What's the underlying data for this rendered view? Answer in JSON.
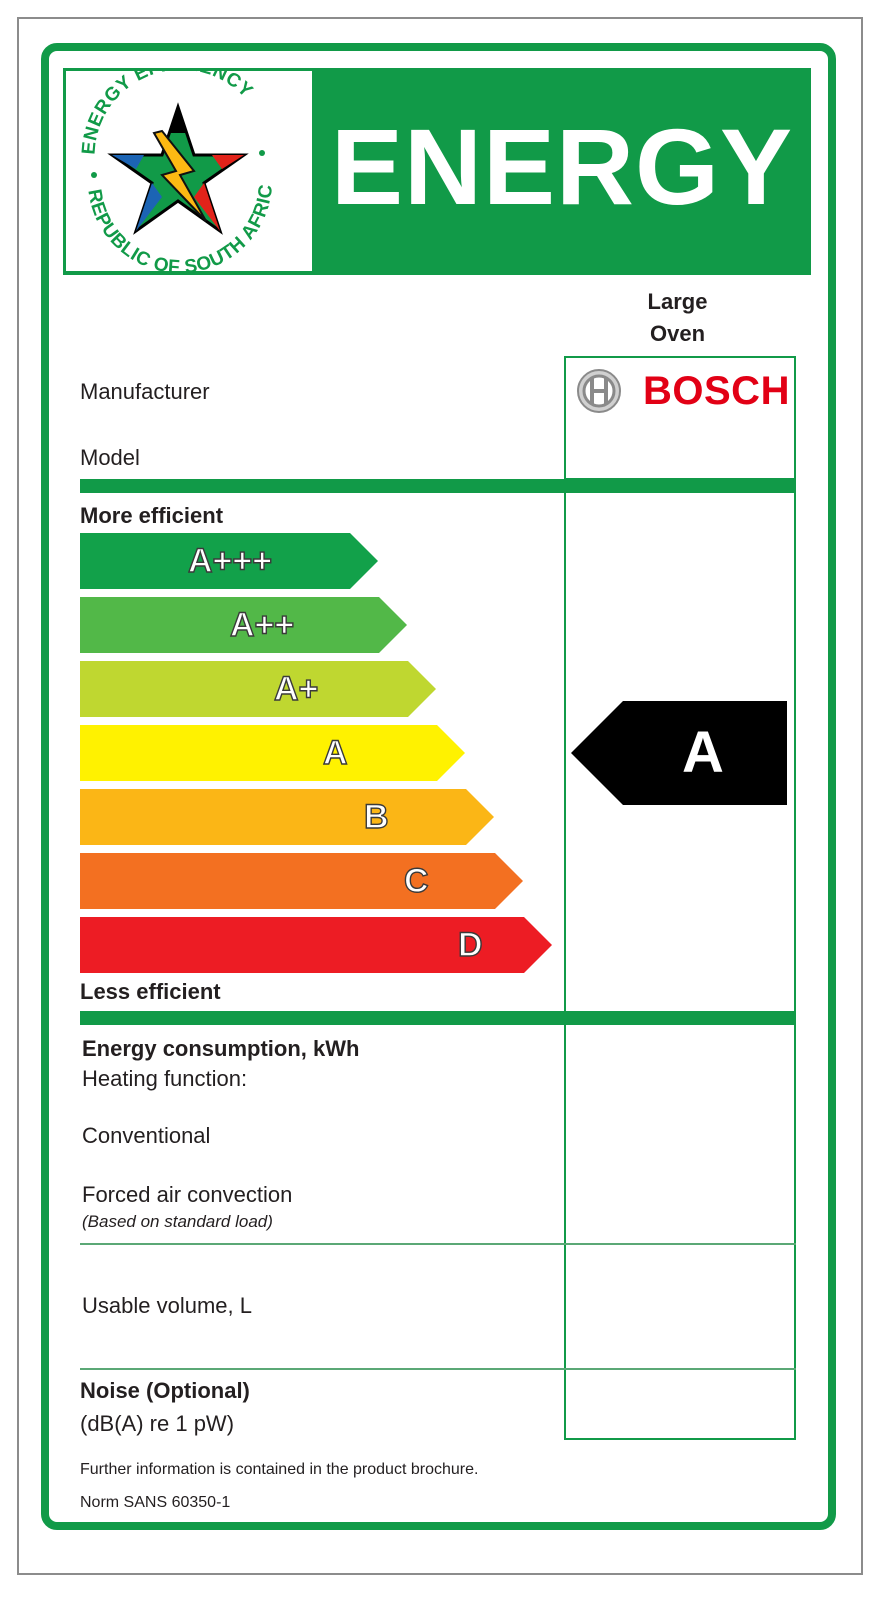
{
  "header": {
    "title": "ENERGY",
    "seal_text_top": "ENERGY EFFICIENCY",
    "seal_text_bottom": "REPUBLIC OF SOUTH AFRICA"
  },
  "product": {
    "type_line1": "Large",
    "type_line2": "Oven",
    "brand": "BOSCH"
  },
  "rows": {
    "manufacturer": "Manufacturer",
    "model": "Model"
  },
  "scale": {
    "more_efficient": "More efficient",
    "less_efficient": "Less efficient",
    "classes": [
      {
        "label": "A+++",
        "color": "#12a14a"
      },
      {
        "label": "A++",
        "color": "#52b848"
      },
      {
        "label": "A+",
        "color": "#bfd730"
      },
      {
        "label": "A",
        "color": "#fff200"
      },
      {
        "label": "B",
        "color": "#fbb616"
      },
      {
        "label": "C",
        "color": "#f37021"
      },
      {
        "label": "D",
        "color": "#ed1c24"
      }
    ],
    "rating": "A"
  },
  "consumption": {
    "heading": "Energy consumption, kWh",
    "heating_function": "Heating function:",
    "conventional": "Conventional",
    "forced_air": "Forced air convection",
    "note": "(Based on standard load)"
  },
  "volume": "Usable volume, L",
  "noise": {
    "heading": "Noise (Optional)",
    "unit": "(dB(A) re 1 pW)"
  },
  "footer": {
    "info": "Further information is contained in the product brochure.",
    "norm": "Norm SANS 60350-1"
  },
  "colors": {
    "brand_green": "#119a48",
    "bosch_red": "#e20015"
  }
}
